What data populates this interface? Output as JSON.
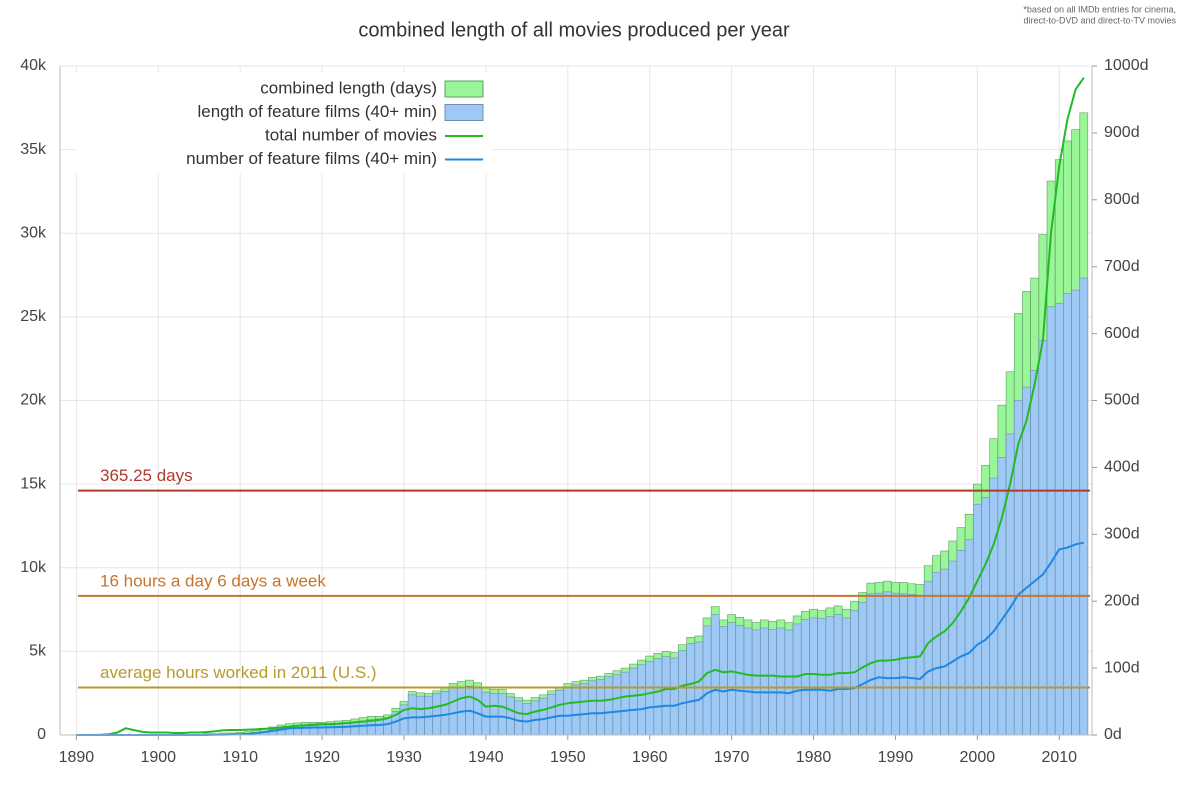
{
  "chart_data": {
    "type": "bar",
    "title": "combined length of all movies produced per year",
    "footnote": [
      "*based on all IMDb entries for cinema,",
      "direct-to-DVD and direct-to-TV movies"
    ],
    "grid": true,
    "legend": "top-left",
    "xlim": [
      1888,
      2014
    ],
    "xticks": [
      1890,
      1900,
      1910,
      1920,
      1930,
      1940,
      1950,
      1960,
      1970,
      1980,
      1990,
      2000,
      2010
    ],
    "ylim": [
      0,
      40000
    ],
    "yticks": [
      0,
      {
        "value": 5000,
        "label": "5k"
      },
      {
        "value": 10000,
        "label": "10k"
      },
      {
        "value": 15000,
        "label": "15k"
      },
      {
        "value": 20000,
        "label": "20k"
      },
      {
        "value": 25000,
        "label": "25k"
      },
      {
        "value": 30000,
        "label": "30k"
      },
      {
        "value": 35000,
        "label": "35k"
      },
      {
        "value": 40000,
        "label": "40k"
      }
    ],
    "y2lim": [
      0,
      1000
    ],
    "y2ticks": [
      {
        "value": 0,
        "label": "0d"
      },
      {
        "value": 100,
        "label": "100d"
      },
      {
        "value": 200,
        "label": "200d"
      },
      {
        "value": 300,
        "label": "300d"
      },
      {
        "value": 400,
        "label": "400d"
      },
      {
        "value": 500,
        "label": "500d"
      },
      {
        "value": 600,
        "label": "600d"
      },
      {
        "value": 700,
        "label": "700d"
      },
      {
        "value": 800,
        "label": "800d"
      },
      {
        "value": 900,
        "label": "900d"
      },
      {
        "value": 1000,
        "label": "1000d"
      }
    ],
    "x": [
      1890,
      1891,
      1892,
      1893,
      1894,
      1895,
      1896,
      1897,
      1898,
      1899,
      1900,
      1901,
      1902,
      1903,
      1904,
      1905,
      1906,
      1907,
      1908,
      1909,
      1910,
      1911,
      1912,
      1913,
      1914,
      1915,
      1916,
      1917,
      1918,
      1919,
      1920,
      1921,
      1922,
      1923,
      1924,
      1925,
      1926,
      1927,
      1928,
      1929,
      1930,
      1931,
      1932,
      1933,
      1934,
      1935,
      1936,
      1937,
      1938,
      1939,
      1940,
      1941,
      1942,
      1943,
      1944,
      1945,
      1946,
      1947,
      1948,
      1949,
      1950,
      1951,
      1952,
      1953,
      1954,
      1955,
      1956,
      1957,
      1958,
      1959,
      1960,
      1961,
      1962,
      1963,
      1964,
      1965,
      1966,
      1967,
      1968,
      1969,
      1970,
      1971,
      1972,
      1973,
      1974,
      1975,
      1976,
      1977,
      1978,
      1979,
      1980,
      1981,
      1982,
      1983,
      1984,
      1985,
      1986,
      1987,
      1988,
      1989,
      1990,
      1991,
      1992,
      1993,
      1994,
      1995,
      1996,
      1997,
      1998,
      1999,
      2000,
      2001,
      2002,
      2003,
      2004,
      2005,
      2006,
      2007,
      2008,
      2009,
      2010,
      2011,
      2012,
      2013
    ],
    "series": [
      {
        "name": "combined length (days)",
        "type": "bar",
        "axis": "y2",
        "color": "#98f598",
        "stroke": "#5f9f5f",
        "values": [
          0,
          0,
          0,
          0,
          0,
          0,
          1,
          1,
          1,
          1,
          1,
          1,
          1,
          1,
          1,
          1,
          2,
          2,
          3,
          3,
          4,
          5,
          7,
          9,
          12,
          15,
          17,
          18,
          19,
          19,
          19,
          20,
          21,
          22,
          24,
          26,
          28,
          28,
          30,
          40,
          50,
          65,
          63,
          62,
          66,
          70,
          77,
          80,
          82,
          78,
          70,
          68,
          68,
          62,
          56,
          52,
          56,
          60,
          66,
          72,
          77,
          80,
          82,
          86,
          88,
          92,
          96,
          100,
          106,
          112,
          118,
          122,
          125,
          123,
          135,
          146,
          148,
          175,
          192,
          172,
          180,
          176,
          172,
          168,
          172,
          170,
          172,
          168,
          178,
          185,
          188,
          186,
          190,
          193,
          188,
          200,
          213,
          227,
          228,
          230,
          228,
          228,
          226,
          225,
          253,
          268,
          275,
          290,
          310,
          330,
          375,
          403,
          443,
          493,
          543,
          630,
          663,
          683,
          748,
          828,
          860,
          888,
          905,
          930
        ]
      },
      {
        "name": "length of feature films (40+ min)",
        "type": "bar",
        "axis": "y2",
        "color": "#9ec9f5",
        "stroke": "#6f8fb0",
        "values": [
          0,
          0,
          0,
          0,
          0,
          0,
          0,
          0,
          0,
          0,
          0,
          0,
          0,
          0,
          0,
          0,
          0,
          0,
          1,
          1,
          1,
          2,
          3,
          5,
          8,
          10,
          12,
          13,
          14,
          14,
          15,
          15,
          16,
          17,
          19,
          21,
          23,
          24,
          26,
          35,
          45,
          60,
          58,
          58,
          62,
          65,
          70,
          72,
          73,
          70,
          64,
          62,
          62,
          57,
          51,
          47,
          51,
          55,
          61,
          67,
          72,
          75,
          77,
          81,
          83,
          87,
          90,
          94,
          100,
          105,
          110,
          114,
          117,
          115,
          126,
          137,
          139,
          163,
          180,
          162,
          168,
          164,
          160,
          157,
          160,
          158,
          160,
          157,
          166,
          173,
          175,
          174,
          177,
          180,
          175,
          186,
          198,
          211,
          212,
          214,
          212,
          211,
          210,
          209,
          230,
          243,
          248,
          260,
          276,
          292,
          345,
          355,
          384,
          415,
          450,
          500,
          520,
          545,
          590,
          640,
          645,
          660,
          665,
          683
        ]
      },
      {
        "name": "total number of movies",
        "type": "line",
        "axis": "y",
        "color": "#22bb22",
        "values": [
          0,
          0,
          0,
          20,
          50,
          150,
          400,
          300,
          200,
          150,
          150,
          150,
          120,
          120,
          150,
          150,
          180,
          220,
          280,
          300,
          300,
          320,
          340,
          370,
          400,
          450,
          500,
          550,
          580,
          620,
          650,
          660,
          680,
          720,
          760,
          800,
          850,
          900,
          1000,
          1200,
          1500,
          1600,
          1550,
          1600,
          1700,
          1800,
          2000,
          2200,
          2300,
          2100,
          1700,
          1750,
          1700,
          1500,
          1300,
          1250,
          1400,
          1500,
          1650,
          1800,
          1900,
          1950,
          2000,
          2050,
          2050,
          2100,
          2200,
          2300,
          2350,
          2400,
          2500,
          2600,
          2750,
          2750,
          2950,
          3050,
          3200,
          3700,
          3900,
          3750,
          3800,
          3700,
          3600,
          3550,
          3550,
          3550,
          3500,
          3500,
          3500,
          3650,
          3650,
          3600,
          3600,
          3700,
          3700,
          3750,
          4050,
          4300,
          4450,
          4450,
          4500,
          4600,
          4650,
          4700,
          5500,
          5900,
          6200,
          6700,
          7400,
          8200,
          9200,
          10200,
          11400,
          13000,
          15000,
          17400,
          18800,
          21000,
          23600,
          30000,
          34000,
          36800,
          38600,
          39300
        ]
      },
      {
        "name": "number of feature films (40+ min)",
        "type": "line",
        "axis": "y",
        "color": "#1e88e5",
        "values": [
          0,
          0,
          0,
          0,
          0,
          0,
          0,
          0,
          0,
          0,
          0,
          0,
          0,
          0,
          0,
          0,
          0,
          10,
          20,
          30,
          50,
          80,
          120,
          180,
          250,
          320,
          400,
          420,
          430,
          450,
          450,
          460,
          470,
          490,
          520,
          550,
          580,
          600,
          650,
          800,
          1000,
          1050,
          1050,
          1100,
          1150,
          1200,
          1300,
          1400,
          1450,
          1300,
          1100,
          1100,
          1100,
          1000,
          850,
          800,
          900,
          950,
          1050,
          1150,
          1150,
          1200,
          1250,
          1300,
          1300,
          1350,
          1400,
          1450,
          1500,
          1550,
          1650,
          1700,
          1750,
          1750,
          1900,
          2000,
          2100,
          2500,
          2700,
          2600,
          2700,
          2650,
          2600,
          2550,
          2550,
          2550,
          2550,
          2500,
          2650,
          2700,
          2700,
          2700,
          2650,
          2750,
          2750,
          2800,
          3050,
          3300,
          3450,
          3400,
          3400,
          3450,
          3400,
          3350,
          3800,
          4000,
          4100,
          4400,
          4700,
          4900,
          5400,
          5700,
          6200,
          6900,
          7600,
          8400,
          8800,
          9200,
          9600,
          10300,
          11100,
          11200,
          11400,
          11500
        ]
      }
    ],
    "annotations": [
      {
        "label": "365.25 days",
        "value": 365.25,
        "axis": "y2",
        "color": "#b03a2e"
      },
      {
        "label": "16 hours a day 6 days a week",
        "value": 208,
        "axis": "y2",
        "color": "#c8742a"
      },
      {
        "label": "average hours worked in 2011 (U.S.)",
        "value": 71,
        "axis": "y2",
        "color": "#b89a2a"
      }
    ]
  }
}
